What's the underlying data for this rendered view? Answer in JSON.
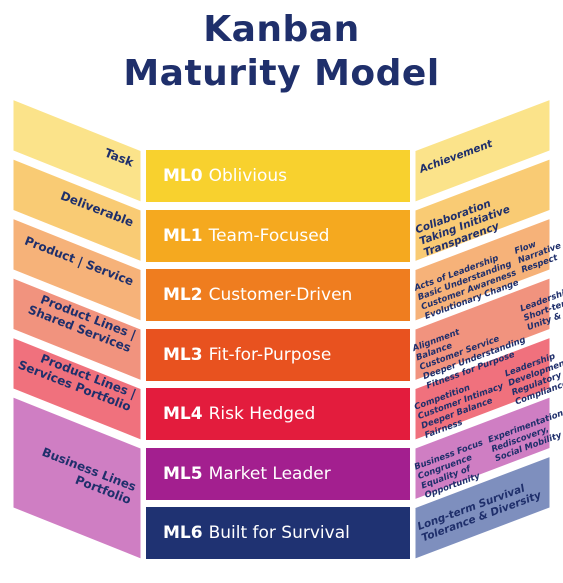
{
  "title": {
    "line1": "Kanban",
    "line2": "Maturity Model"
  },
  "levels": [
    {
      "code": "ML0",
      "name": "Oblivious",
      "color": "#f8d12e",
      "left_color": "#fbe38a",
      "right_color": "#fbe38a"
    },
    {
      "code": "ML1",
      "name": "Team-Focused",
      "color": "#f5a91f",
      "left_color": "#f9cb74",
      "right_color": "#f9cb74"
    },
    {
      "code": "ML2",
      "name": "Customer-Driven",
      "color": "#ef7d1f",
      "left_color": "#f6b279",
      "right_color": "#f6b279"
    },
    {
      "code": "ML3",
      "name": "Fit-for-Purpose",
      "color": "#e8521f",
      "left_color": "#f1937e",
      "right_color": "#f1937e"
    },
    {
      "code": "ML4",
      "name": "Risk Hedged",
      "color": "#e31c3d",
      "left_color": "#f0717d",
      "right_color": "#f0717d"
    },
    {
      "code": "ML5",
      "name": "Market Leader",
      "color": "#a31f8f",
      "left_color": "#cf7ec3",
      "right_color": "#cf7ec3"
    },
    {
      "code": "ML6",
      "name": "Built for Survival",
      "color": "#1f3272",
      "left_color": "#7e8fbe",
      "right_color": "#7e8fbe"
    }
  ],
  "left_labels": [
    [
      "Task"
    ],
    [
      "Deliverable"
    ],
    [
      "Product | Service"
    ],
    [
      "Product Lines |",
      "Shared Services"
    ],
    [
      "Product Lines |",
      "Services Portfolio"
    ],
    [
      "Business Lines",
      "Portfolio"
    ]
  ],
  "right_labels": [
    {
      "cols": [
        [
          "Achievement"
        ]
      ]
    },
    {
      "cols": [
        [
          "Collaboration",
          "Taking Initiative",
          "Transparency"
        ]
      ]
    },
    {
      "cols": [
        [
          "Acts of Leadership",
          "Basic Understanding",
          "Customer Awareness",
          "Evolutionary Change"
        ],
        [
          "Flow",
          "Narrative",
          "Respect"
        ]
      ]
    },
    {
      "cols": [
        [
          "Alignment",
          "Balance",
          "Customer Service",
          "Deeper Understanding",
          "Fitness for Purpose"
        ],
        [
          "Leadership at All Levels",
          "Short-term Results",
          "Unity & Alignment"
        ]
      ]
    },
    {
      "cols": [
        [
          "Competition",
          "Customer Intimacy",
          "Deeper Balance",
          "Fairness"
        ],
        [
          "Leadership",
          "Development",
          "Regulatory",
          "Compliance"
        ]
      ]
    },
    {
      "cols": [
        [
          "Business Focus",
          "Congruence",
          "Equality of",
          "Opportunity"
        ],
        [
          "Experimentation,",
          "Rediscovery,",
          "Social Mobility"
        ]
      ]
    },
    {
      "cols": [
        [
          "Long-term Survival",
          "Tolerance & Diversity"
        ]
      ]
    }
  ]
}
